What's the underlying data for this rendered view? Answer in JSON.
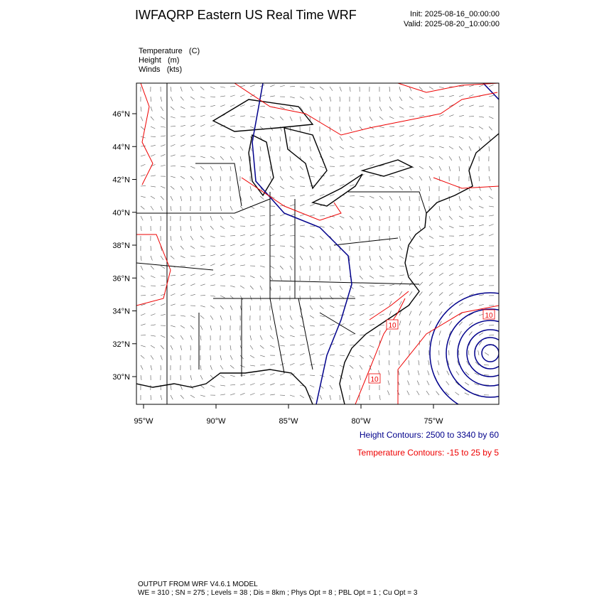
{
  "header": {
    "title": "IWFAQRP Eastern US Real Time WRF",
    "init": "Init: 2025-08-16_00:00:00",
    "valid": "Valid: 2025-08-20_10:00:00"
  },
  "fields": [
    "Temperature   (C)",
    "Height   (m)",
    "Winds   (kts)"
  ],
  "map": {
    "lat_labels": [
      "46°N",
      "44°N",
      "42°N",
      "40°N",
      "38°N",
      "36°N",
      "34°N",
      "32°N",
      "30°N"
    ],
    "lon_labels": [
      "95°W",
      "90°W",
      "85°W",
      "80°W",
      "75°W"
    ],
    "contour_labels": [
      "10",
      "10",
      "10"
    ]
  },
  "legend": {
    "height": "Height Contours: 2500 to 3340 by 60",
    "temperature": "Temperature Contours: -15 to 25 by 5"
  },
  "footer": {
    "line1": "OUTPUT FROM WRF V4.6.1 MODEL",
    "line2": "WE = 310 ; SN = 275 ; Levels = 38 ; Dis = 8km ; Phys Opt = 8 ; PBL Opt = 1 ; Cu Opt = 3"
  }
}
